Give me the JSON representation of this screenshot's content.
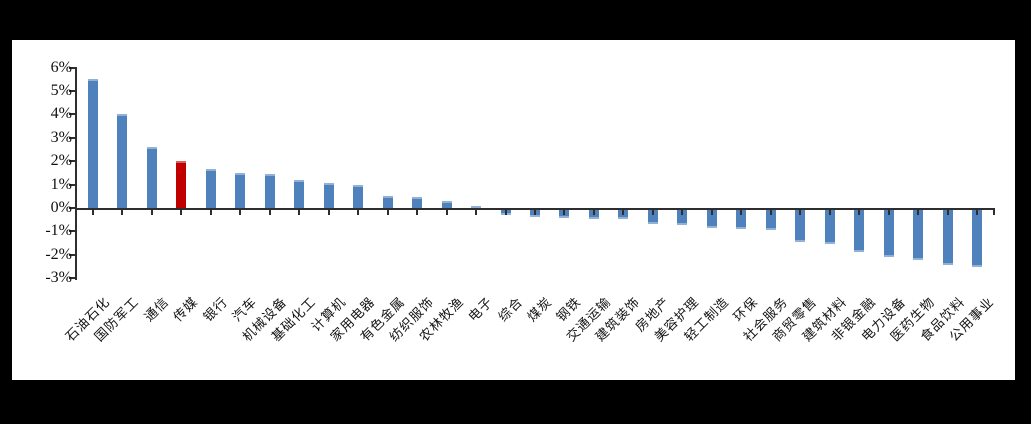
{
  "frame": {
    "background_color": "#000000",
    "panel_color": "#ffffff"
  },
  "chart_data": {
    "type": "bar",
    "title": "",
    "xlabel": "",
    "ylabel": "",
    "ylim": [
      -3,
      6
    ],
    "ytick_step": 1,
    "ytick_values": [
      6,
      5,
      4,
      3,
      2,
      1,
      0,
      -1,
      -2,
      -3
    ],
    "ytick_labels": [
      "6%",
      "5%",
      "4%",
      "3%",
      "2%",
      "1%",
      "0%",
      "-1%",
      "-2%",
      "-3%"
    ],
    "grid": false,
    "legend": null,
    "bar_color": "#4F81BD",
    "highlight_color": "#C00000",
    "axis_color": "#2e2e2e",
    "highlight_index": 3,
    "highlight_category": "传媒",
    "categories": [
      "石油石化",
      "国防军工",
      "通信",
      "传媒",
      "银行",
      "汽车",
      "机械设备",
      "基础化工",
      "计算机",
      "家用电器",
      "有色金属",
      "纺织服饰",
      "农林牧渔",
      "电子",
      "综合",
      "煤炭",
      "钢铁",
      "交通运输",
      "建筑装饰",
      "房地产",
      "美容护理",
      "轻工制造",
      "环保",
      "社会服务",
      "商贸零售",
      "建筑材料",
      "非银金融",
      "电力设备",
      "医药生物",
      "食品饮料",
      "公用事业"
    ],
    "values": [
      5.5,
      4.0,
      2.6,
      2.0,
      1.65,
      1.5,
      1.45,
      1.2,
      1.05,
      1.0,
      0.5,
      0.45,
      0.3,
      0.1,
      -0.2,
      -0.3,
      -0.35,
      -0.4,
      -0.4,
      -0.6,
      -0.65,
      -0.75,
      -0.8,
      -0.85,
      -1.35,
      -1.45,
      -1.8,
      -2.0,
      -2.15,
      -2.35,
      -2.45
    ],
    "value_unit": "%"
  }
}
